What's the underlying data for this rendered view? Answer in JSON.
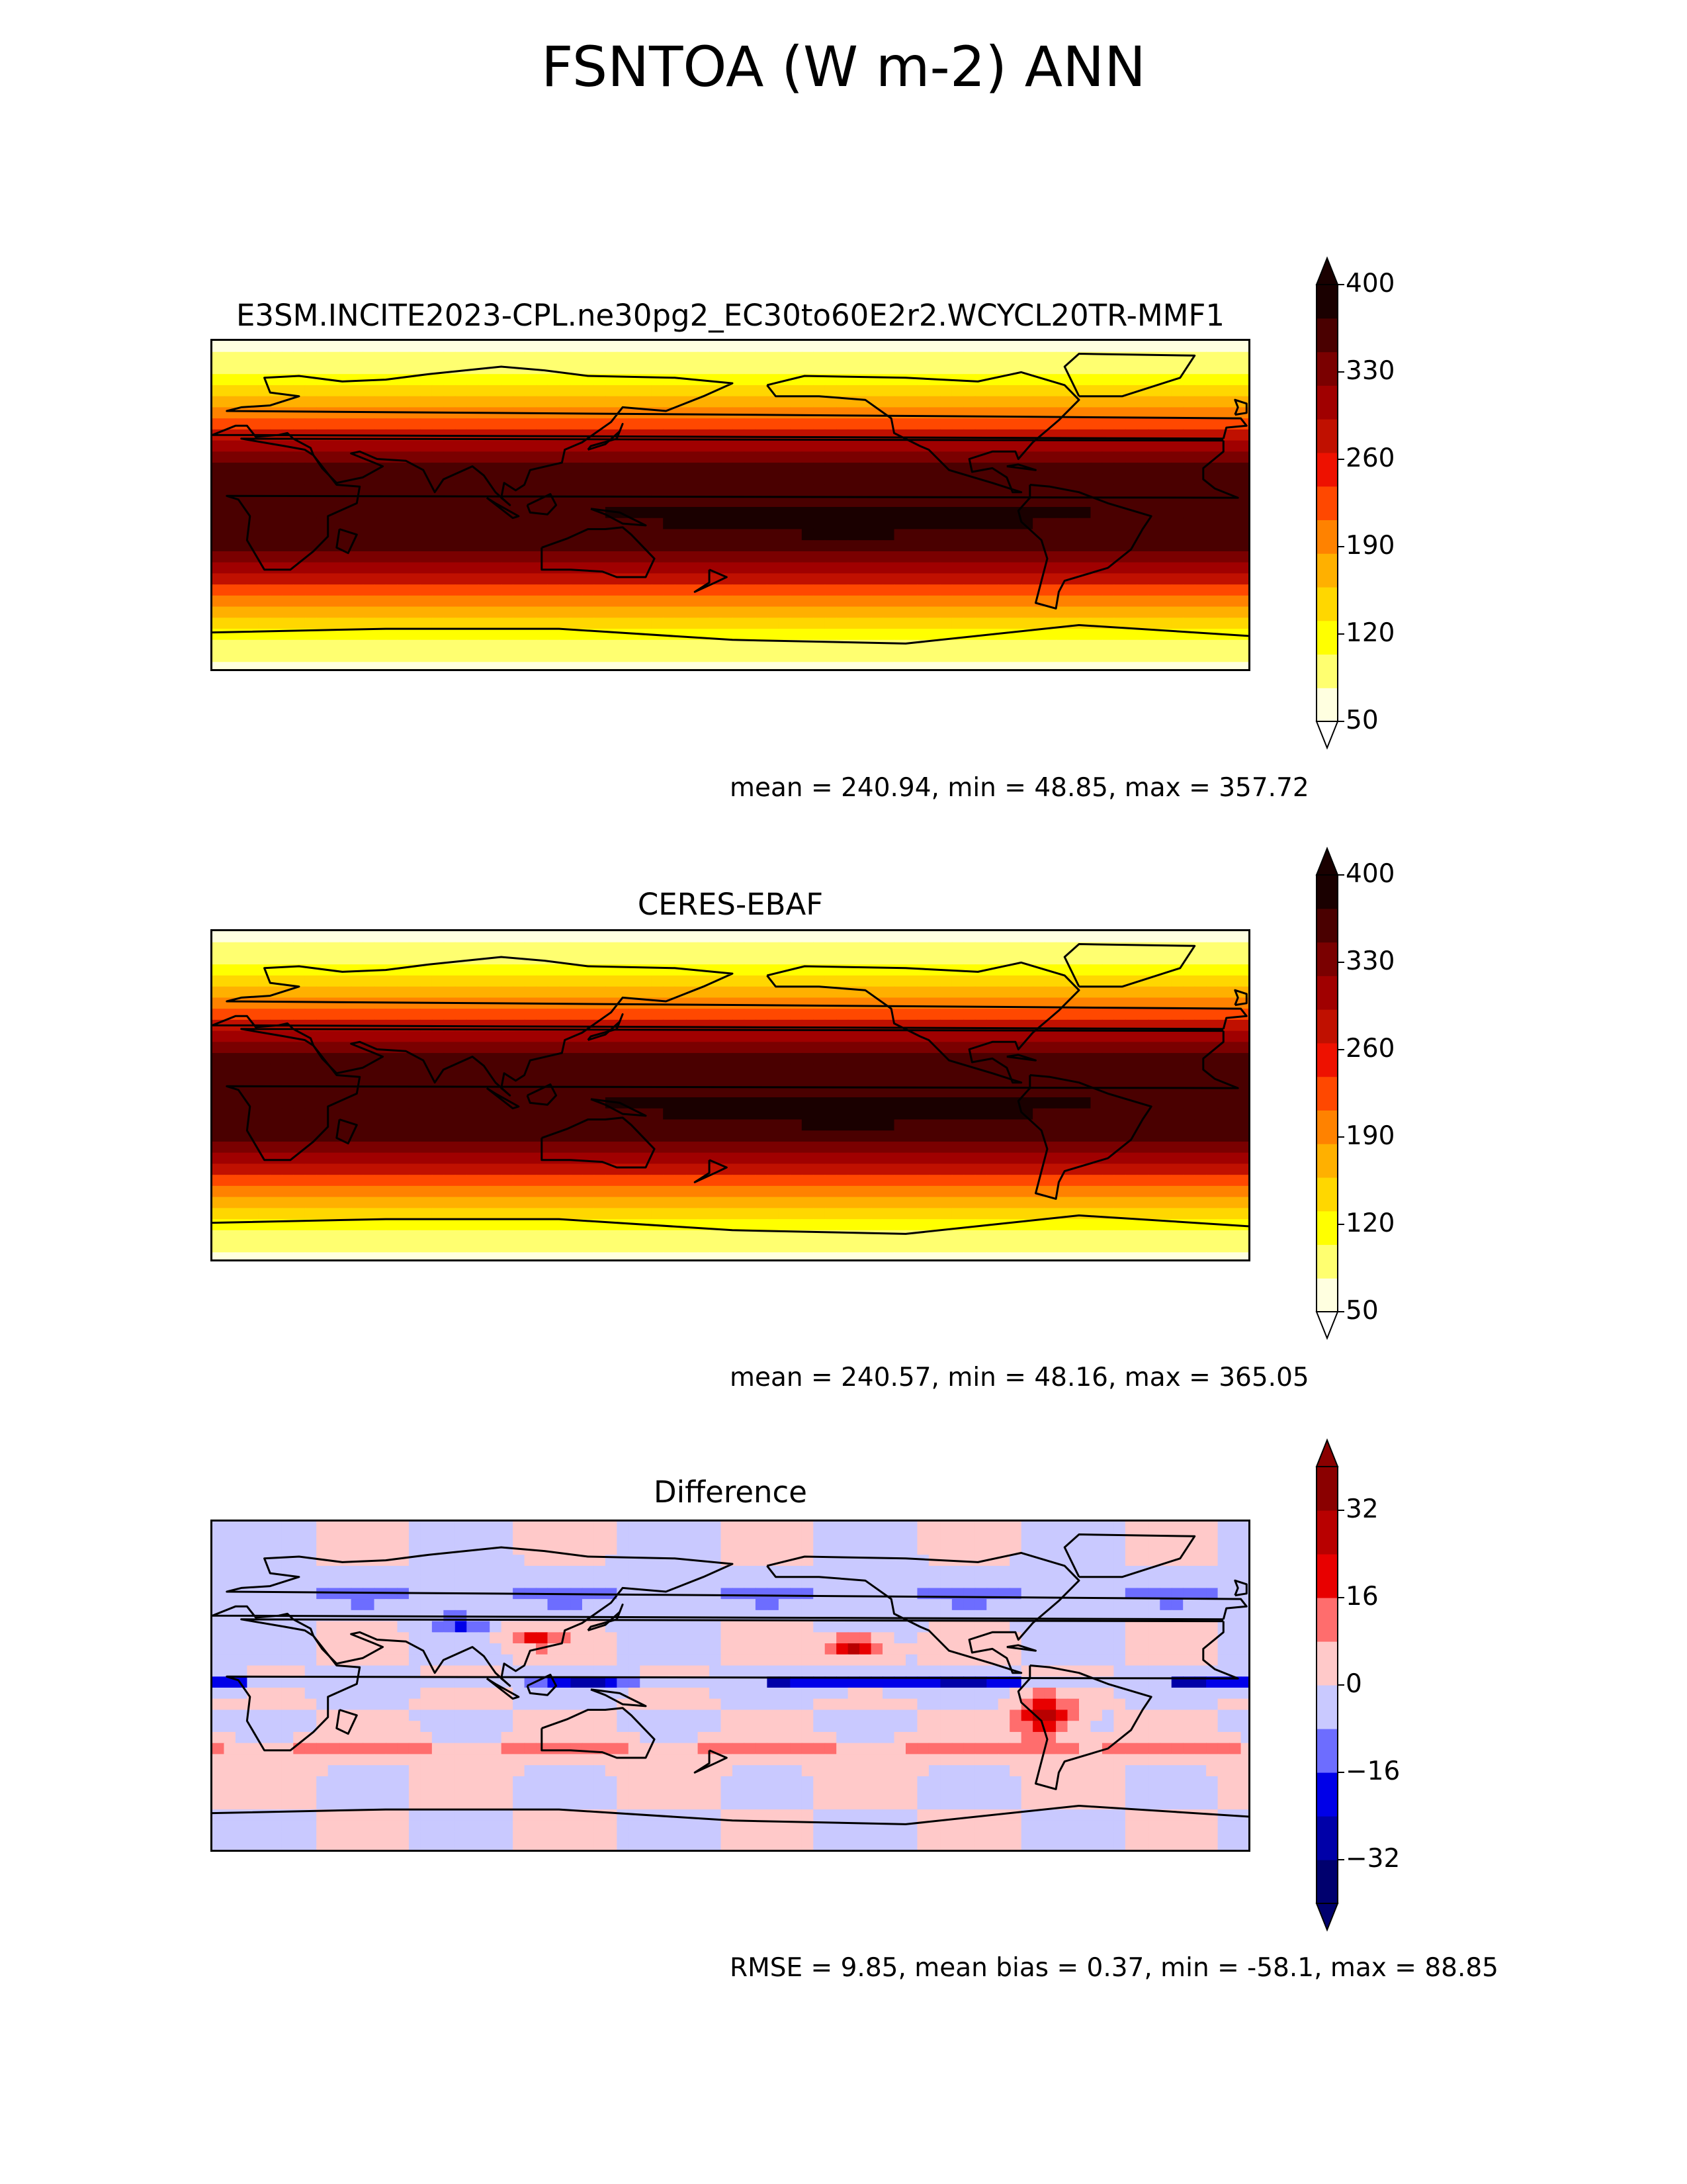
{
  "figure": {
    "title": "FSNTOA (W m-2) ANN"
  },
  "colors": {
    "sequential": [
      "#ffffe0",
      "#ffff70",
      "#ffff00",
      "#ffd700",
      "#ffb000",
      "#ff8200",
      "#ff4800",
      "#ee1100",
      "#c01000",
      "#a00000",
      "#7a0000",
      "#4a0000",
      "#1a0000"
    ],
    "diverging": [
      "#00006e",
      "#0000a8",
      "#0000e8",
      "#6d6dff",
      "#c9c9ff",
      "#ffc9c9",
      "#ff6d6d",
      "#e80000",
      "#b80000",
      "#8a0000"
    ]
  },
  "chart_data": [
    {
      "type": "heatmap",
      "title": "E3SM.INCITE2023-CPL.ne30pg2_EC30to60E2r2.WCYCL20TR-MMF1",
      "colorbar": {
        "ticks": [
          "400",
          "330",
          "260",
          "190",
          "120",
          "50"
        ],
        "range": [
          50,
          400
        ],
        "levels": [
          50,
          70,
          100,
          120,
          150,
          190,
          220,
          240,
          260,
          290,
          310,
          330,
          370,
          400
        ],
        "extend": "both"
      },
      "stats": "mean = 240.94, min = 48.85, max = 357.72"
    },
    {
      "type": "heatmap",
      "title": "CERES-EBAF",
      "colorbar": {
        "ticks": [
          "400",
          "330",
          "260",
          "190",
          "120",
          "50"
        ],
        "range": [
          50,
          400
        ],
        "levels": [
          50,
          70,
          100,
          120,
          150,
          190,
          220,
          240,
          260,
          290,
          310,
          330,
          370,
          400
        ],
        "extend": "both"
      },
      "stats": "mean = 240.57, min = 48.16, max = 365.05"
    },
    {
      "type": "heatmap",
      "title": "Difference",
      "colorbar": {
        "ticks": [
          "32",
          "16",
          "0",
          "−16",
          "−32"
        ],
        "range": [
          -40,
          40
        ],
        "levels": [
          -40,
          -32,
          -24,
          -16,
          -8,
          0,
          8,
          16,
          24,
          32,
          40
        ],
        "extend": "both"
      },
      "stats": "RMSE = 9.85, mean bias = 0.37, min = -58.1, max = 88.85"
    }
  ]
}
